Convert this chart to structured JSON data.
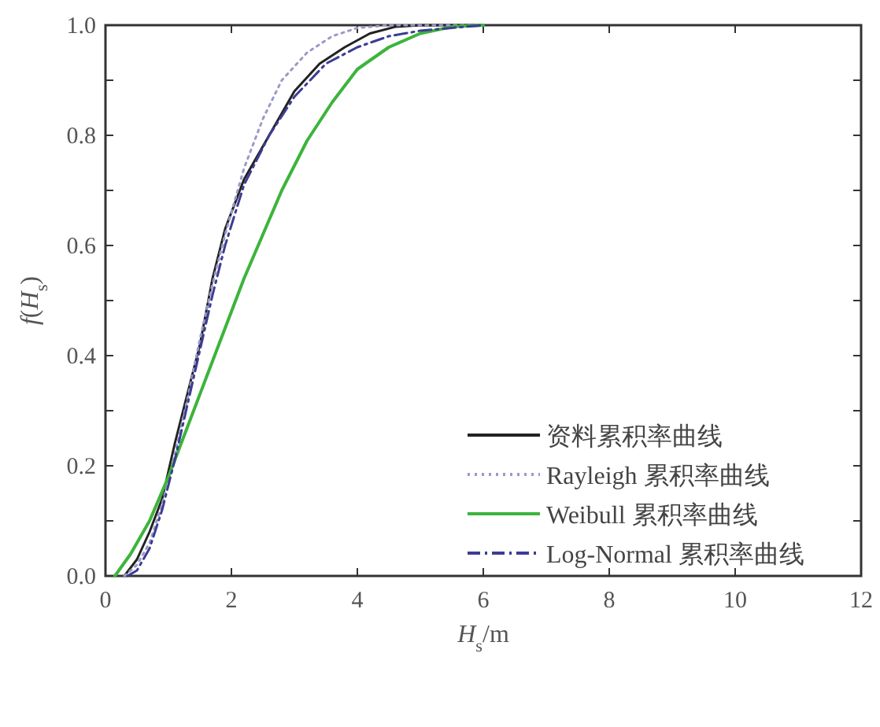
{
  "chart_data": {
    "type": "line",
    "xlabel": "*H*$_{s}$/m",
    "ylabel": "*f*(*H*$_{s}$)",
    "xlim": [
      0,
      12
    ],
    "ylim": [
      0,
      1
    ],
    "xticks": [
      0,
      2,
      4,
      6,
      8,
      10,
      12
    ],
    "yticks": [
      {
        "value": 0,
        "label": "0.0"
      },
      {
        "value": 0.1,
        "label": null
      },
      {
        "value": 0.2,
        "label": "0.2"
      },
      {
        "value": 0.3,
        "label": null
      },
      {
        "value": 0.4,
        "label": "0.4"
      },
      {
        "value": 0.5,
        "label": null
      },
      {
        "value": 0.6,
        "label": "0.6"
      },
      {
        "value": 0.7,
        "label": null
      },
      {
        "value": 0.8,
        "label": "0.8"
      },
      {
        "value": 0.9,
        "label": null
      },
      {
        "value": 1,
        "label": "1.0"
      }
    ],
    "legend": "bottom right",
    "grid": false,
    "marker": "none",
    "series": [
      {
        "name": "资料累积率曲线",
        "color": "#222222",
        "line_style": "solid",
        "x": [
          0.3,
          0.5,
          0.7,
          0.9,
          1.1,
          1.3,
          1.5,
          1.7,
          1.9,
          2.2,
          2.6,
          3.0,
          3.4,
          3.8,
          4.2,
          4.6,
          5,
          6
        ],
        "values": [
          0,
          0.03,
          0.08,
          0.14,
          0.24,
          0.33,
          0.42,
          0.54,
          0.63,
          0.72,
          0.8,
          0.88,
          0.93,
          0.96,
          0.985,
          0.997,
          1,
          1
        ]
      },
      {
        "name": "Rayleigh 累积率曲线",
        "color": "#9a9ac8",
        "line_style": "dotted",
        "x": [
          0.3,
          0.5,
          0.7,
          0.9,
          1.1,
          1.3,
          1.5,
          1.7,
          1.9,
          2.2,
          2.5,
          2.8,
          3.2,
          3.6,
          4.0,
          4.5,
          6
        ],
        "values": [
          0,
          0.02,
          0.06,
          0.13,
          0.22,
          0.32,
          0.43,
          0.53,
          0.62,
          0.74,
          0.83,
          0.9,
          0.95,
          0.98,
          0.995,
          1,
          1
        ]
      },
      {
        "name": "Weibull 累积率曲线",
        "color": "#3cb43c",
        "line_style": "solid",
        "x": [
          0.15,
          0.4,
          0.7,
          1.0,
          1.3,
          1.6,
          1.9,
          2.2,
          2.5,
          2.8,
          3.2,
          3.6,
          4.0,
          4.5,
          5.0,
          5.5,
          6
        ],
        "values": [
          0,
          0.04,
          0.1,
          0.18,
          0.27,
          0.36,
          0.45,
          0.54,
          0.62,
          0.7,
          0.79,
          0.86,
          0.92,
          0.96,
          0.985,
          0.997,
          1
        ]
      },
      {
        "name": "Log-Normal 累积率曲线",
        "color": "#3c3c96",
        "line_style": "dashdot",
        "x": [
          0.35,
          0.5,
          0.7,
          0.9,
          1.1,
          1.3,
          1.5,
          1.7,
          1.9,
          2.2,
          2.6,
          3.0,
          3.5,
          4.0,
          4.5,
          5,
          5.5,
          6
        ],
        "values": [
          0,
          0.01,
          0.05,
          0.12,
          0.21,
          0.31,
          0.41,
          0.51,
          0.6,
          0.71,
          0.8,
          0.87,
          0.93,
          0.96,
          0.98,
          0.99,
          0.995,
          1
        ]
      }
    ]
  }
}
